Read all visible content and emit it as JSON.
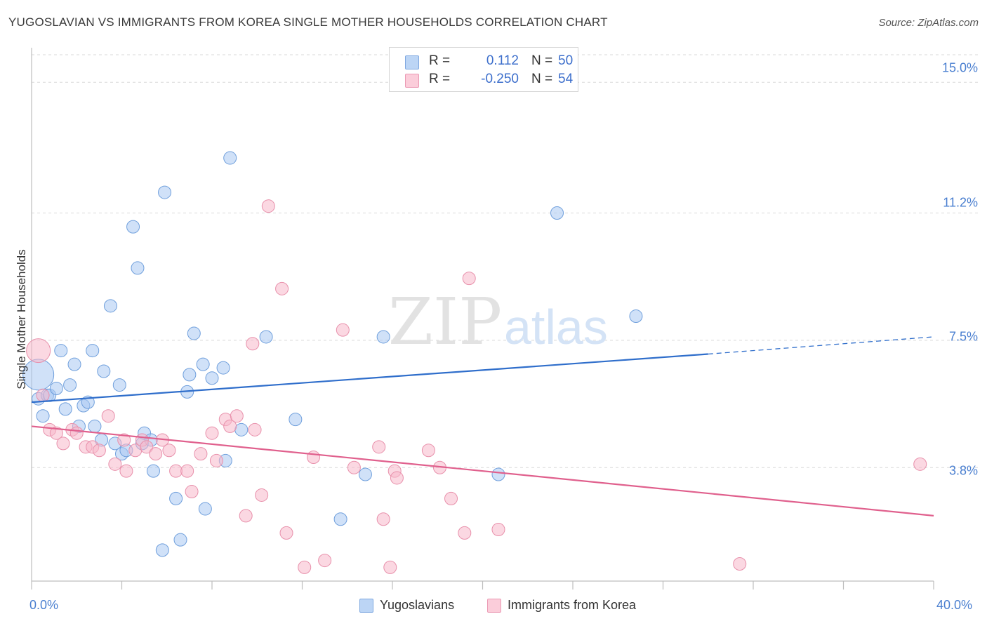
{
  "header": {
    "title": "YUGOSLAVIAN VS IMMIGRANTS FROM KOREA SINGLE MOTHER HOUSEHOLDS CORRELATION CHART",
    "source": "Source: ZipAtlas.com"
  },
  "watermark": {
    "part1": "ZIP",
    "part2": "atlas"
  },
  "legend": {
    "rows": [
      {
        "r_label": "R =",
        "r_value": "0.112",
        "n_label": "N =",
        "n_value": "50",
        "color": "#a9c8f2"
      },
      {
        "r_label": "R =",
        "r_value": "-0.250",
        "n_label": "N =",
        "n_value": "54",
        "color": "#f7b8cb"
      }
    ]
  },
  "chart_data": {
    "type": "scatter",
    "title": "YUGOSLAVIAN VS IMMIGRANTS FROM KOREA SINGLE MOTHER HOUSEHOLDS CORRELATION CHART",
    "xlabel": "",
    "ylabel": "Single Mother Households",
    "xlim": [
      0,
      40
    ],
    "ylim": [
      0.5,
      15.8
    ],
    "x_ticks_labels": [
      "0.0%",
      "40.0%"
    ],
    "y_ticks": [
      3.8,
      7.5,
      11.2,
      15.0
    ],
    "y_ticks_labels": [
      "3.8%",
      "7.5%",
      "11.2%",
      "15.0%"
    ],
    "grid": "horizontal dashed",
    "legend_position": "top-center",
    "series": [
      {
        "name": "Yugoslavians",
        "color": "#a9c8f2",
        "stroke": "#6f9fdc",
        "trend": {
          "x": [
            0,
            30
          ],
          "y": [
            5.7,
            7.1
          ],
          "dashed_to": [
            40,
            7.6
          ],
          "color": "#2f6ecb"
        },
        "points": [
          [
            0.3,
            6.5,
            22
          ],
          [
            0.3,
            5.8,
            9
          ],
          [
            0.5,
            5.3,
            9
          ],
          [
            0.7,
            5.9,
            9
          ],
          [
            0.8,
            5.9,
            9
          ],
          [
            1.1,
            6.1,
            9
          ],
          [
            1.3,
            7.2,
            9
          ],
          [
            1.5,
            5.5,
            9
          ],
          [
            1.7,
            6.2,
            9
          ],
          [
            1.9,
            6.8,
            9
          ],
          [
            2.1,
            5.0,
            9
          ],
          [
            2.3,
            5.6,
            9
          ],
          [
            2.5,
            5.7,
            9
          ],
          [
            2.7,
            7.2,
            9
          ],
          [
            2.8,
            5.0,
            9
          ],
          [
            3.1,
            4.6,
            9
          ],
          [
            3.2,
            6.6,
            9
          ],
          [
            3.5,
            8.5,
            9
          ],
          [
            3.7,
            4.5,
            9
          ],
          [
            3.9,
            6.2,
            9
          ],
          [
            4.0,
            4.2,
            9
          ],
          [
            4.2,
            4.3,
            9
          ],
          [
            4.5,
            10.8,
            9
          ],
          [
            4.7,
            9.6,
            9
          ],
          [
            4.9,
            4.5,
            9
          ],
          [
            5.0,
            4.8,
            9
          ],
          [
            5.3,
            4.6,
            9
          ],
          [
            5.4,
            3.7,
            9
          ],
          [
            5.8,
            1.4,
            9
          ],
          [
            5.9,
            11.8,
            9
          ],
          [
            6.4,
            2.9,
            9
          ],
          [
            6.6,
            1.7,
            9
          ],
          [
            6.9,
            6.0,
            9
          ],
          [
            7.0,
            6.5,
            9
          ],
          [
            7.2,
            7.7,
            9
          ],
          [
            7.6,
            6.8,
            9
          ],
          [
            7.7,
            2.6,
            9
          ],
          [
            8.0,
            6.4,
            9
          ],
          [
            8.5,
            6.7,
            9
          ],
          [
            8.6,
            4.0,
            9
          ],
          [
            8.8,
            12.8,
            9
          ],
          [
            9.3,
            4.9,
            9
          ],
          [
            10.4,
            7.6,
            9
          ],
          [
            11.7,
            5.2,
            9
          ],
          [
            13.7,
            2.3,
            9
          ],
          [
            14.8,
            3.6,
            9
          ],
          [
            15.6,
            7.6,
            9
          ],
          [
            20.7,
            3.6,
            9
          ],
          [
            23.3,
            11.2,
            9
          ],
          [
            26.8,
            8.2,
            9
          ]
        ]
      },
      {
        "name": "Immigrants from Korea",
        "color": "#f7b8cb",
        "stroke": "#e890ab",
        "trend": {
          "x": [
            0,
            40
          ],
          "y": [
            5.0,
            2.4
          ],
          "color": "#e0608d"
        },
        "points": [
          [
            0.3,
            7.2,
            17
          ],
          [
            0.5,
            5.9,
            9
          ],
          [
            0.8,
            4.9,
            9
          ],
          [
            1.1,
            4.8,
            9
          ],
          [
            1.4,
            4.5,
            9
          ],
          [
            1.8,
            4.9,
            9
          ],
          [
            2.0,
            4.8,
            9
          ],
          [
            2.4,
            4.4,
            9
          ],
          [
            2.7,
            4.4,
            9
          ],
          [
            3.0,
            4.3,
            9
          ],
          [
            3.4,
            5.3,
            9
          ],
          [
            3.7,
            3.9,
            9
          ],
          [
            4.1,
            4.6,
            9
          ],
          [
            4.2,
            3.7,
            9
          ],
          [
            4.6,
            4.3,
            9
          ],
          [
            4.9,
            4.6,
            9
          ],
          [
            5.1,
            4.4,
            9
          ],
          [
            5.5,
            4.2,
            9
          ],
          [
            5.8,
            4.6,
            9
          ],
          [
            6.1,
            4.3,
            9
          ],
          [
            6.4,
            3.7,
            9
          ],
          [
            6.9,
            3.7,
            9
          ],
          [
            7.1,
            3.1,
            9
          ],
          [
            7.5,
            4.2,
            9
          ],
          [
            8.0,
            4.8,
            9
          ],
          [
            8.2,
            4.0,
            9
          ],
          [
            8.6,
            5.2,
            9
          ],
          [
            8.8,
            5.0,
            9
          ],
          [
            9.1,
            5.3,
            9
          ],
          [
            9.5,
            2.4,
            9
          ],
          [
            9.8,
            7.4,
            9
          ],
          [
            9.9,
            4.9,
            9
          ],
          [
            10.2,
            3.0,
            9
          ],
          [
            10.5,
            11.4,
            9
          ],
          [
            11.1,
            9.0,
            9
          ],
          [
            11.3,
            1.9,
            9
          ],
          [
            12.1,
            0.9,
            9
          ],
          [
            12.5,
            4.1,
            9
          ],
          [
            13.0,
            1.1,
            9
          ],
          [
            13.8,
            7.8,
            9
          ],
          [
            14.3,
            3.8,
            9
          ],
          [
            15.4,
            4.4,
            9
          ],
          [
            15.6,
            2.3,
            9
          ],
          [
            15.9,
            0.9,
            9
          ],
          [
            16.1,
            3.7,
            9
          ],
          [
            16.2,
            3.5,
            9
          ],
          [
            17.6,
            4.3,
            9
          ],
          [
            18.1,
            3.8,
            9
          ],
          [
            18.6,
            2.9,
            9
          ],
          [
            19.2,
            1.9,
            9
          ],
          [
            19.4,
            9.3,
            9
          ],
          [
            20.7,
            2.0,
            9
          ],
          [
            31.4,
            1.0,
            9
          ],
          [
            39.4,
            3.9,
            9
          ]
        ]
      }
    ]
  }
}
